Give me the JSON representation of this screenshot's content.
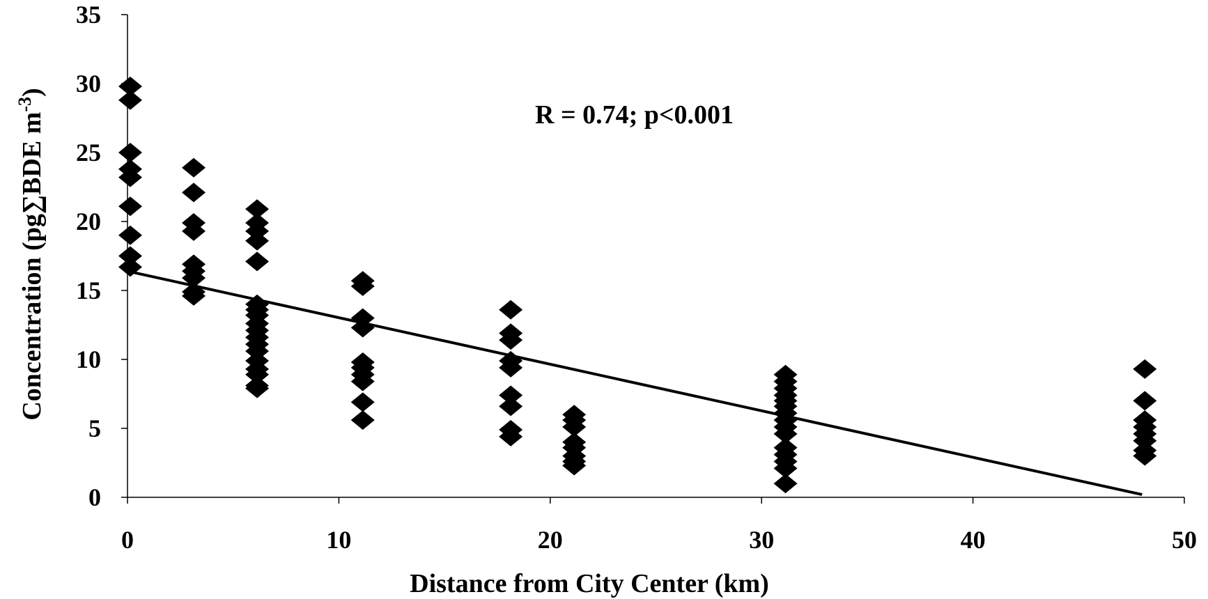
{
  "chart_data": {
    "type": "scatter",
    "title": "",
    "xlabel": "Distance from City Center (km)",
    "ylabel": "Concentration (pg∑BDE m",
    "ylabel_superscript": "-3",
    "ylabel_suffix": ")",
    "xlim": [
      0,
      50
    ],
    "ylim": [
      0,
      35
    ],
    "x_ticks": [
      0,
      10,
      20,
      30,
      40,
      50
    ],
    "y_ticks": [
      0,
      5,
      10,
      15,
      20,
      25,
      30,
      35
    ],
    "grid": false,
    "legend": "none",
    "marker": "diamond",
    "marker_color": "#000000",
    "annotation": "R = 0.74; p<0.001",
    "trendline": {
      "x": [
        0,
        48
      ],
      "y": [
        16.4,
        0.2
      ]
    },
    "points": [
      {
        "x": 0,
        "y": 29.8
      },
      {
        "x": 0,
        "y": 28.8
      },
      {
        "x": 0,
        "y": 25.0
      },
      {
        "x": 0,
        "y": 23.8
      },
      {
        "x": 0,
        "y": 23.2
      },
      {
        "x": 0,
        "y": 21.1
      },
      {
        "x": 0,
        "y": 19.0
      },
      {
        "x": 0,
        "y": 17.5
      },
      {
        "x": 0,
        "y": 16.7
      },
      {
        "x": 3,
        "y": 23.9
      },
      {
        "x": 3,
        "y": 22.1
      },
      {
        "x": 3,
        "y": 19.9
      },
      {
        "x": 3,
        "y": 19.3
      },
      {
        "x": 3,
        "y": 16.9
      },
      {
        "x": 3,
        "y": 16.4
      },
      {
        "x": 3,
        "y": 15.9
      },
      {
        "x": 3,
        "y": 14.9
      },
      {
        "x": 3,
        "y": 14.6
      },
      {
        "x": 6,
        "y": 20.9
      },
      {
        "x": 6,
        "y": 19.9
      },
      {
        "x": 6,
        "y": 19.3
      },
      {
        "x": 6,
        "y": 18.6
      },
      {
        "x": 6,
        "y": 17.1
      },
      {
        "x": 6,
        "y": 14.0
      },
      {
        "x": 6,
        "y": 13.6
      },
      {
        "x": 6,
        "y": 13.2
      },
      {
        "x": 6,
        "y": 12.6
      },
      {
        "x": 6,
        "y": 12.1
      },
      {
        "x": 6,
        "y": 11.6
      },
      {
        "x": 6,
        "y": 11.1
      },
      {
        "x": 6,
        "y": 10.6
      },
      {
        "x": 6,
        "y": 9.9
      },
      {
        "x": 6,
        "y": 9.3
      },
      {
        "x": 6,
        "y": 8.9
      },
      {
        "x": 6,
        "y": 8.1
      },
      {
        "x": 6,
        "y": 7.9
      },
      {
        "x": 11,
        "y": 15.7
      },
      {
        "x": 11,
        "y": 15.3
      },
      {
        "x": 11,
        "y": 13.0
      },
      {
        "x": 11,
        "y": 12.3
      },
      {
        "x": 11,
        "y": 9.8
      },
      {
        "x": 11,
        "y": 9.4
      },
      {
        "x": 11,
        "y": 8.9
      },
      {
        "x": 11,
        "y": 8.4
      },
      {
        "x": 11,
        "y": 6.9
      },
      {
        "x": 11,
        "y": 5.6
      },
      {
        "x": 18,
        "y": 13.6
      },
      {
        "x": 18,
        "y": 11.9
      },
      {
        "x": 18,
        "y": 11.4
      },
      {
        "x": 18,
        "y": 9.9
      },
      {
        "x": 18,
        "y": 9.4
      },
      {
        "x": 18,
        "y": 7.4
      },
      {
        "x": 18,
        "y": 6.6
      },
      {
        "x": 18,
        "y": 4.9
      },
      {
        "x": 18,
        "y": 4.4
      },
      {
        "x": 21,
        "y": 6.0
      },
      {
        "x": 21,
        "y": 5.6
      },
      {
        "x": 21,
        "y": 5.1
      },
      {
        "x": 21,
        "y": 4.0
      },
      {
        "x": 21,
        "y": 3.6
      },
      {
        "x": 21,
        "y": 3.0
      },
      {
        "x": 21,
        "y": 2.6
      },
      {
        "x": 21,
        "y": 2.3
      },
      {
        "x": 31,
        "y": 8.9
      },
      {
        "x": 31,
        "y": 8.4
      },
      {
        "x": 31,
        "y": 7.9
      },
      {
        "x": 31,
        "y": 7.4
      },
      {
        "x": 31,
        "y": 7.0
      },
      {
        "x": 31,
        "y": 6.6
      },
      {
        "x": 31,
        "y": 6.1
      },
      {
        "x": 31,
        "y": 5.6
      },
      {
        "x": 31,
        "y": 5.1
      },
      {
        "x": 31,
        "y": 4.6
      },
      {
        "x": 31,
        "y": 3.6
      },
      {
        "x": 31,
        "y": 3.1
      },
      {
        "x": 31,
        "y": 2.6
      },
      {
        "x": 31,
        "y": 2.1
      },
      {
        "x": 31,
        "y": 1.0
      },
      {
        "x": 48,
        "y": 9.3
      },
      {
        "x": 48,
        "y": 7.0
      },
      {
        "x": 48,
        "y": 5.6
      },
      {
        "x": 48,
        "y": 5.1
      },
      {
        "x": 48,
        "y": 4.6
      },
      {
        "x": 48,
        "y": 4.1
      },
      {
        "x": 48,
        "y": 3.4
      },
      {
        "x": 48,
        "y": 3.0
      }
    ]
  }
}
